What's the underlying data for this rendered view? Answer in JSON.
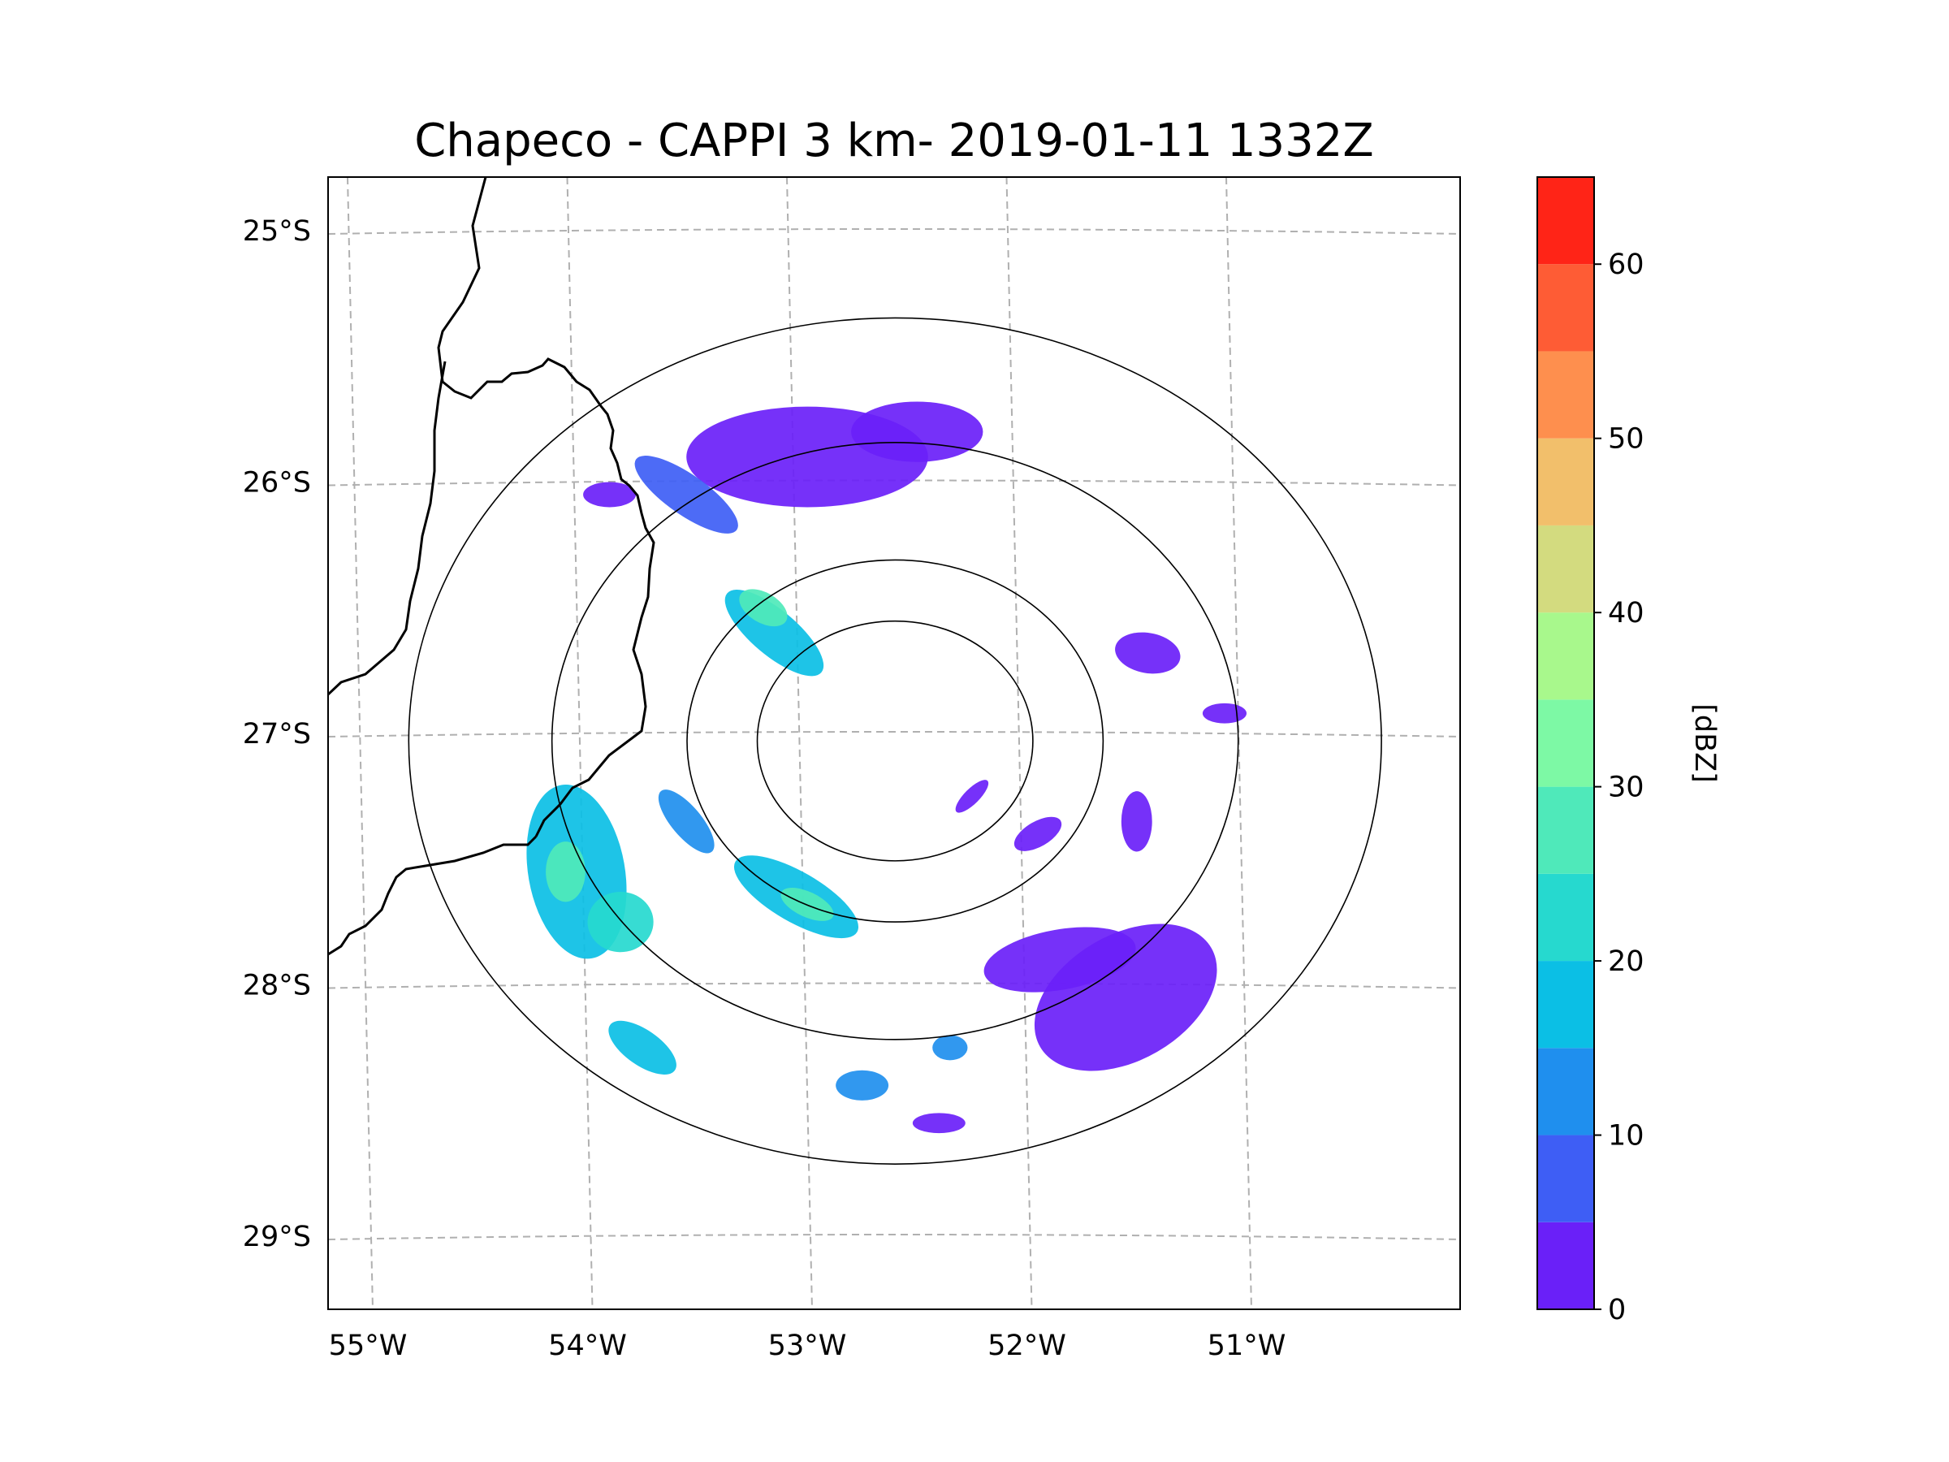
{
  "title": "Chapeco - CAPPI 3 km- 2019-01-11 1332Z",
  "map": {
    "lon_range": [
      -55.2,
      -50.05
    ],
    "lat_range": [
      -29.3,
      -24.78
    ],
    "lat_ticks": [
      {
        "value": -25,
        "label": "25°S"
      },
      {
        "value": -26,
        "label": "26°S"
      },
      {
        "value": -27,
        "label": "27°S"
      },
      {
        "value": -28,
        "label": "28°S"
      },
      {
        "value": -29,
        "label": "29°S"
      }
    ],
    "lon_ticks": [
      {
        "value": -55,
        "label": "55°W"
      },
      {
        "value": -54,
        "label": "54°W"
      },
      {
        "value": -53,
        "label": "53°W"
      },
      {
        "value": -52,
        "label": "52°W"
      },
      {
        "value": -51,
        "label": "51°W"
      }
    ],
    "radar_center": {
      "lon": -52.6,
      "lat": -27.03
    },
    "range_ring_radii_deg": [
      0.51,
      0.77,
      1.27,
      1.8
    ]
  },
  "colorbar": {
    "label": "[dBZ]",
    "min": 0,
    "max": 65,
    "step": 5,
    "tick_values": [
      0,
      10,
      20,
      30,
      40,
      50,
      60
    ],
    "tick_labels": [
      "0",
      "10",
      "20",
      "30",
      "40",
      "50",
      "60"
    ],
    "colors": [
      "#6a20f8",
      "#3e5ef5",
      "#1f8fee",
      "#0bbfe5",
      "#26d9cf",
      "#4fe9ba",
      "#7df9a5",
      "#a8f88c",
      "#d3db7f",
      "#f2bf6b",
      "#fe8f4e",
      "#fe5c35",
      "#ff2417"
    ]
  },
  "echoes": [
    {
      "name": "north-cluster",
      "lon": -53.0,
      "lat": -25.9,
      "rx": 0.55,
      "ry": 0.2,
      "rot": 0,
      "dbz": 3
    },
    {
      "name": "north-east-cluster",
      "lon": -52.5,
      "lat": -25.8,
      "rx": 0.3,
      "ry": 0.12,
      "rot": 0,
      "dbz": 4
    },
    {
      "name": "north-west-band",
      "lon": -53.55,
      "lat": -26.05,
      "rx": 0.28,
      "ry": 0.08,
      "rot": 35,
      "dbz": 8
    },
    {
      "name": "north-west-small",
      "lon": -53.9,
      "lat": -26.05,
      "rx": 0.12,
      "ry": 0.05,
      "rot": 0,
      "dbz": 2
    },
    {
      "name": "central-north-band",
      "lon": -53.15,
      "lat": -26.6,
      "rx": 0.28,
      "ry": 0.09,
      "rot": 40,
      "dbz": 18
    },
    {
      "name": "central-north-core",
      "lon": -53.2,
      "lat": -26.5,
      "rx": 0.12,
      "ry": 0.06,
      "rot": 30,
      "dbz": 25
    },
    {
      "name": "west-band-core",
      "lon": -54.05,
      "lat": -27.55,
      "rx": 0.22,
      "ry": 0.35,
      "rot": -10,
      "dbz": 18
    },
    {
      "name": "west-band-hot",
      "lon": -54.1,
      "lat": -27.55,
      "rx": 0.09,
      "ry": 0.12,
      "rot": 0,
      "dbz": 28
    },
    {
      "name": "west-lower",
      "lon": -53.85,
      "lat": -27.75,
      "rx": 0.15,
      "ry": 0.12,
      "rot": 0,
      "dbz": 20
    },
    {
      "name": "south-west-cell",
      "lon": -53.75,
      "lat": -28.25,
      "rx": 0.18,
      "ry": 0.07,
      "rot": 35,
      "dbz": 18
    },
    {
      "name": "central-south-band",
      "lon": -53.05,
      "lat": -27.65,
      "rx": 0.32,
      "ry": 0.1,
      "rot": 30,
      "dbz": 15
    },
    {
      "name": "central-south-core",
      "lon": -53.0,
      "lat": -27.68,
      "rx": 0.13,
      "ry": 0.05,
      "rot": 25,
      "dbz": 25
    },
    {
      "name": "central-west-band",
      "lon": -53.55,
      "lat": -27.35,
      "rx": 0.18,
      "ry": 0.06,
      "rot": 50,
      "dbz": 10
    },
    {
      "name": "south-east-cluster",
      "lon": -51.55,
      "lat": -28.05,
      "rx": 0.45,
      "ry": 0.25,
      "rot": -30,
      "dbz": 2
    },
    {
      "name": "south-east-band",
      "lon": -51.85,
      "lat": -27.9,
      "rx": 0.35,
      "ry": 0.12,
      "rot": -10,
      "dbz": 3
    },
    {
      "name": "east-cell",
      "lon": -51.45,
      "lat": -26.68,
      "rx": 0.15,
      "ry": 0.08,
      "rot": 10,
      "dbz": 3
    },
    {
      "name": "east-right-cell",
      "lon": -51.1,
      "lat": -26.92,
      "rx": 0.1,
      "ry": 0.04,
      "rot": 0,
      "dbz": 2
    },
    {
      "name": "inner-east-arc",
      "lon": -52.25,
      "lat": -27.25,
      "rx": 0.1,
      "ry": 0.03,
      "rot": -45,
      "dbz": 3
    },
    {
      "name": "east-middle-cell",
      "lon": -51.95,
      "lat": -27.4,
      "rx": 0.12,
      "ry": 0.05,
      "rot": -30,
      "dbz": 3
    },
    {
      "name": "south-cell-a",
      "lon": -52.35,
      "lat": -28.25,
      "rx": 0.08,
      "ry": 0.05,
      "rot": 0,
      "dbz": 10
    },
    {
      "name": "south-cell-b",
      "lon": -52.75,
      "lat": -28.4,
      "rx": 0.12,
      "ry": 0.06,
      "rot": 0,
      "dbz": 10
    },
    {
      "name": "south-cell-c",
      "lon": -52.4,
      "lat": -28.55,
      "rx": 0.12,
      "ry": 0.04,
      "rot": 0,
      "dbz": 3
    },
    {
      "name": "east-far-cell",
      "lon": -51.5,
      "lat": -27.35,
      "rx": 0.07,
      "ry": 0.12,
      "rot": 0,
      "dbz": 3
    }
  ]
}
